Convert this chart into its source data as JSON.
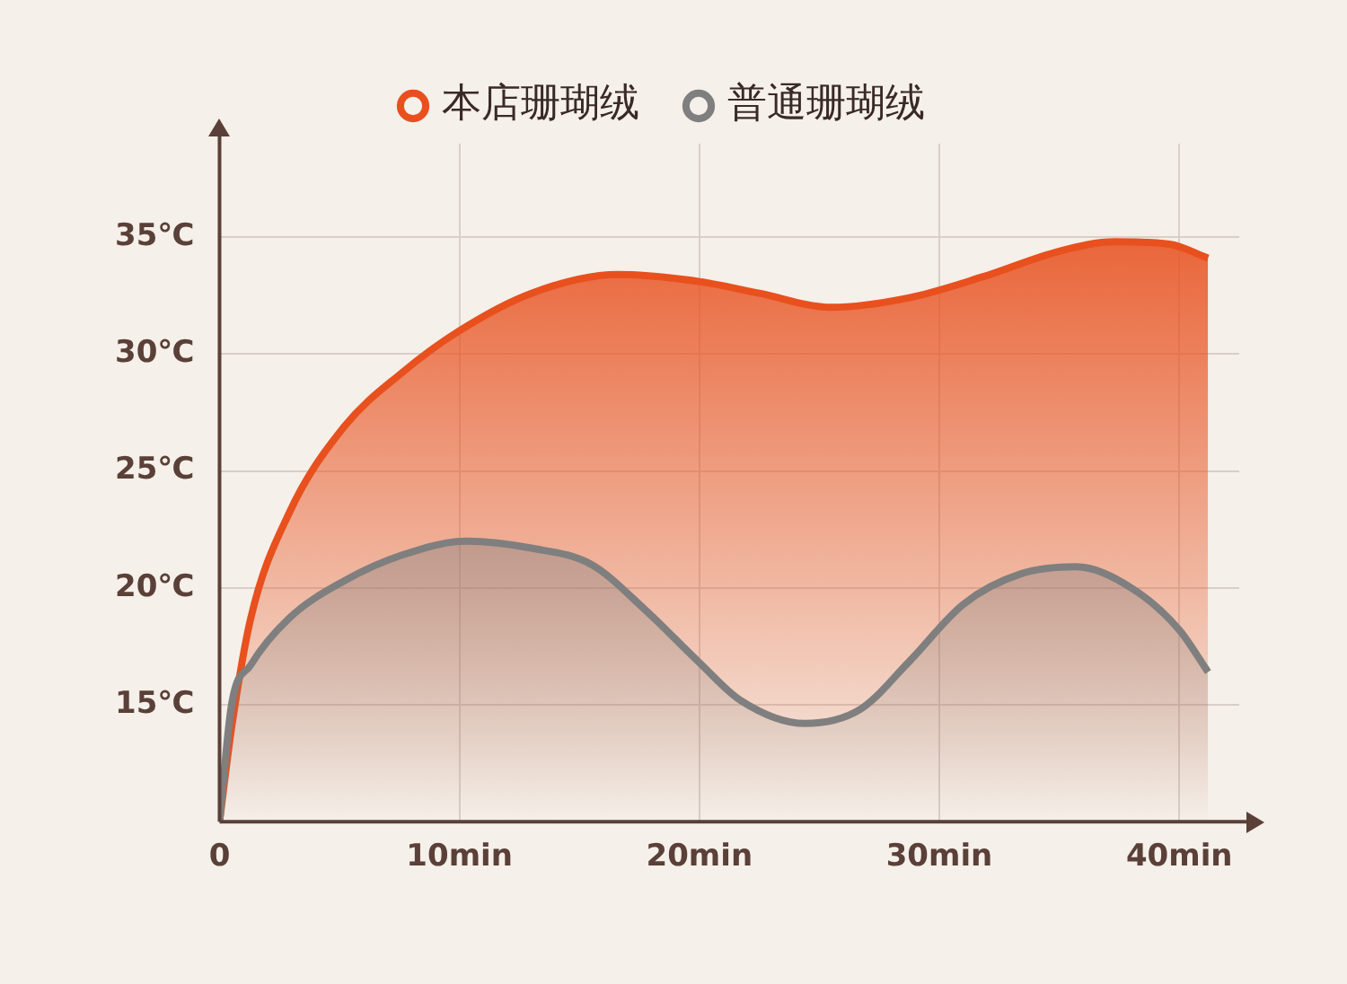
{
  "chart_data": {
    "type": "area",
    "x": [
      0,
      0.5,
      1.3,
      2.9,
      5.2,
      7.6,
      10,
      13,
      16.6,
      20,
      22.5,
      25.5,
      28.7,
      31.8,
      35,
      37.3,
      39.6,
      41.2
    ],
    "series": [
      {
        "name": "本店珊瑚绒",
        "color": "#e8501e",
        "values": [
          10,
          14,
          18.7,
          23.2,
          26.9,
          29.2,
          31,
          32.6,
          33.4,
          33.1,
          32.6,
          32,
          32.4,
          33.3,
          34.4,
          34.8,
          34.7,
          34.1
        ]
      },
      {
        "name": "普通珊瑚绒",
        "color": "#7f7f7f",
        "x": [
          0,
          0.5,
          1.3,
          2.9,
          5.2,
          7.6,
          10.3,
          13,
          15.5,
          17.7,
          20,
          21.7,
          24.4,
          26.7,
          28.7,
          31,
          33.4,
          35.7,
          38,
          40,
          41.2
        ],
        "values": [
          10,
          15,
          16.7,
          18.7,
          20.3,
          21.4,
          22,
          21.7,
          21,
          19.1,
          16.8,
          15.2,
          14.2,
          14.8,
          16.8,
          19.3,
          20.6,
          20.9,
          20,
          18.2,
          16.4
        ]
      }
    ],
    "xlim": [
      0,
      42.5
    ],
    "xticks": [
      0,
      {
        "value": 10,
        "label": "10min"
      },
      {
        "value": 20,
        "label": "20min"
      },
      {
        "value": 30,
        "label": "30min"
      },
      {
        "value": 40,
        "label": "40min"
      }
    ],
    "ylim": [
      10,
      39
    ],
    "yticks": [
      {
        "value": 15,
        "label": "15℃"
      },
      {
        "value": 20,
        "label": "20℃"
      },
      {
        "value": 25,
        "label": "25℃"
      },
      {
        "value": 30,
        "label": "30℃"
      },
      {
        "value": 35,
        "label": "35℃"
      }
    ],
    "grid": true,
    "legend": "top",
    "marker": "none",
    "line_style": "solid"
  }
}
